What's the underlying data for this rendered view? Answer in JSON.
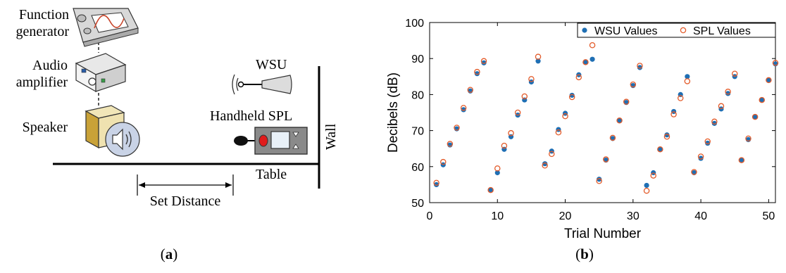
{
  "panel_a": {
    "caption": "(a)",
    "labels": {
      "function_generator_1": "Function",
      "function_generator_2": "generator",
      "audio_amplifier_1": "Audio",
      "audio_amplifier_2": "amplifier",
      "speaker": "Speaker",
      "wsu": "WSU",
      "handheld_spl": "Handheld SPL",
      "wall": "Wall",
      "table": "Table",
      "set_distance": "Set Distance"
    }
  },
  "panel_b": {
    "caption": "(b)"
  },
  "chart_data": {
    "type": "scatter",
    "title": "",
    "xlabel": "Trial Number",
    "ylabel": "Decibels (dB)",
    "xlim": [
      0,
      51
    ],
    "ylim": [
      50,
      100
    ],
    "xticks": [
      0,
      10,
      20,
      30,
      40,
      50
    ],
    "yticks": [
      50,
      60,
      70,
      80,
      90,
      100
    ],
    "grid": false,
    "legend_position": "top-right",
    "x": [
      1,
      2,
      3,
      4,
      5,
      6,
      7,
      8,
      9,
      10,
      11,
      12,
      13,
      14,
      15,
      16,
      17,
      18,
      19,
      20,
      21,
      22,
      23,
      24,
      25,
      26,
      27,
      28,
      29,
      30,
      31,
      32,
      33,
      34,
      35,
      36,
      37,
      38,
      39,
      40,
      41,
      42,
      43,
      44,
      45,
      46,
      47,
      48,
      49,
      50,
      51
    ],
    "series": [
      {
        "name": "WSU Values",
        "marker": "filled-circle",
        "color": "#1f6fb4",
        "values": [
          55,
          60.5,
          66,
          70.5,
          75.8,
          81,
          85.8,
          88.8,
          53.5,
          58.3,
          64.8,
          68.3,
          74.3,
          78.5,
          83.5,
          89.3,
          60.8,
          64.3,
          70.3,
          74.8,
          79.8,
          85.5,
          89,
          89.8,
          56.5,
          61.8,
          67.8,
          72.8,
          77.8,
          82.5,
          87.5,
          54.8,
          58.3,
          64.8,
          68.8,
          75.3,
          80,
          85,
          58.3,
          62.3,
          66.5,
          72,
          76,
          80.3,
          85,
          61.8,
          67.5,
          73.8,
          78.5,
          84,
          88.5
        ]
      },
      {
        "name": "SPL Values",
        "marker": "open-circle",
        "color": "#e35b2a",
        "values": [
          55.5,
          61.3,
          66.3,
          70.8,
          76.3,
          81.3,
          86.3,
          89.3,
          53.5,
          59.5,
          65.8,
          69.3,
          75,
          79.5,
          84.3,
          90.5,
          60.3,
          63.5,
          69.5,
          74,
          79.3,
          84.8,
          89,
          93.7,
          56,
          62,
          68,
          72.8,
          78,
          82.8,
          88,
          53.3,
          57.5,
          64.8,
          68.3,
          74.5,
          79,
          83.7,
          58.5,
          62.8,
          67,
          72.5,
          76.8,
          80.8,
          85.8,
          61.8,
          67.8,
          73.8,
          78.5,
          84,
          88.8
        ]
      }
    ]
  }
}
